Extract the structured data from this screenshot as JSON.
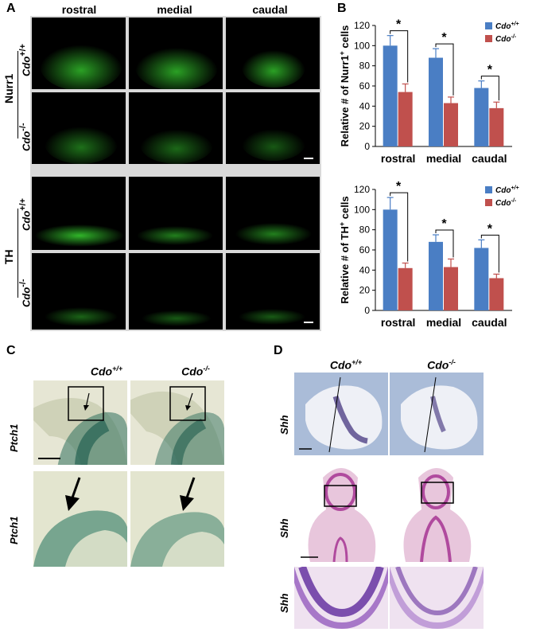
{
  "panels": {
    "A": {
      "label": "A",
      "columns": [
        "rostral",
        "medial",
        "caudal"
      ],
      "markers": [
        "Nurr1",
        "TH"
      ],
      "genotype_wt": "Cdo",
      "genotype_wt_sup": "+/+",
      "genotype_ko": "Cdo",
      "genotype_ko_sup": "-/-"
    },
    "B": {
      "label": "B"
    },
    "C": {
      "label": "C",
      "genotype_wt": "Cdo",
      "genotype_wt_sup": "+/+",
      "genotype_ko": "Cdo",
      "genotype_ko_sup": "-/-",
      "gene": "Ptch1"
    },
    "D": {
      "label": "D",
      "genotype_wt": "Cdo",
      "genotype_wt_sup": "+/+",
      "genotype_ko": "Cdo",
      "genotype_ko_sup": "-/-",
      "gene": "Shh"
    }
  },
  "colors": {
    "wt_bar": "#4a7ec4",
    "ko_bar": "#c0504d",
    "fluor": "#39d631"
  },
  "chart_data": [
    {
      "type": "bar",
      "categories": [
        "rostral",
        "medial",
        "caudal"
      ],
      "ylabel": "Relative # of Nurr1+ cells",
      "ylabel_main": "Relative # of Nurr1",
      "ylabel_sup": "+",
      "ylabel_tail": " cells",
      "ylim": [
        0,
        120
      ],
      "yticks": [
        0,
        20,
        40,
        60,
        80,
        100,
        120
      ],
      "grid": false,
      "legend_position": "top-right",
      "series": [
        {
          "name": "Cdo+/+",
          "name_main": "Cdo",
          "name_sup": "+/+",
          "color": "#4a7ec4",
          "values": [
            100,
            88,
            58
          ],
          "errors": [
            10,
            9,
            7
          ]
        },
        {
          "name": "Cdo-/-",
          "name_main": "Cdo",
          "name_sup": "-/-",
          "color": "#c0504d",
          "values": [
            54,
            43,
            38
          ],
          "errors": [
            8,
            6,
            6
          ]
        }
      ],
      "annotations": [
        "*",
        "*",
        "*"
      ]
    },
    {
      "type": "bar",
      "categories": [
        "rostral",
        "medial",
        "caudal"
      ],
      "ylabel": "Relative # of TH+ cells",
      "ylabel_main": "Relative # of TH",
      "ylabel_sup": "+",
      "ylabel_tail": " cells",
      "ylim": [
        0,
        120
      ],
      "yticks": [
        0,
        20,
        40,
        60,
        80,
        100,
        120
      ],
      "grid": false,
      "legend_position": "top-right",
      "series": [
        {
          "name": "Cdo+/+",
          "name_main": "Cdo",
          "name_sup": "+/+",
          "color": "#4a7ec4",
          "values": [
            100,
            68,
            62
          ],
          "errors": [
            12,
            7,
            8
          ]
        },
        {
          "name": "Cdo-/-",
          "name_main": "Cdo",
          "name_sup": "-/-",
          "color": "#c0504d",
          "values": [
            42,
            43,
            32
          ],
          "errors": [
            5,
            8,
            4
          ]
        }
      ],
      "annotations": [
        "*",
        "*",
        "*"
      ]
    }
  ]
}
